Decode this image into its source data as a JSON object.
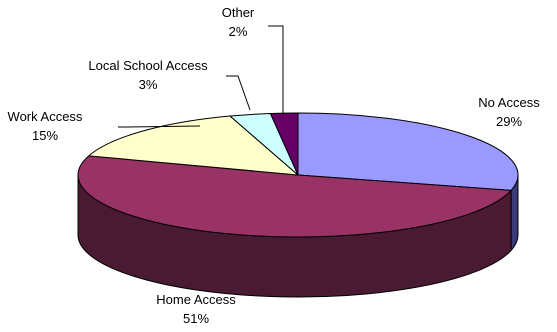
{
  "chart_data": {
    "type": "pie",
    "title": "",
    "style": "3d",
    "slices": [
      {
        "label": "No Access",
        "value": 29,
        "value_label": "29%",
        "color": "#9999ff",
        "side_color": "#3a3a7a"
      },
      {
        "label": "Home Access",
        "value": 51,
        "value_label": "51%",
        "color": "#993366",
        "side_color": "#4a1a33"
      },
      {
        "label": "Work Access",
        "value": 15,
        "value_label": "15%",
        "color": "#ffffcc",
        "side_color": "#7a7a55"
      },
      {
        "label": "Local School Access",
        "value": 3,
        "value_label": "3%",
        "color": "#ccffff",
        "side_color": "#557a7a"
      },
      {
        "label": "Other",
        "value": 2,
        "value_label": "2%",
        "color": "#660066",
        "side_color": "#2e002e"
      }
    ],
    "legend": "none"
  }
}
